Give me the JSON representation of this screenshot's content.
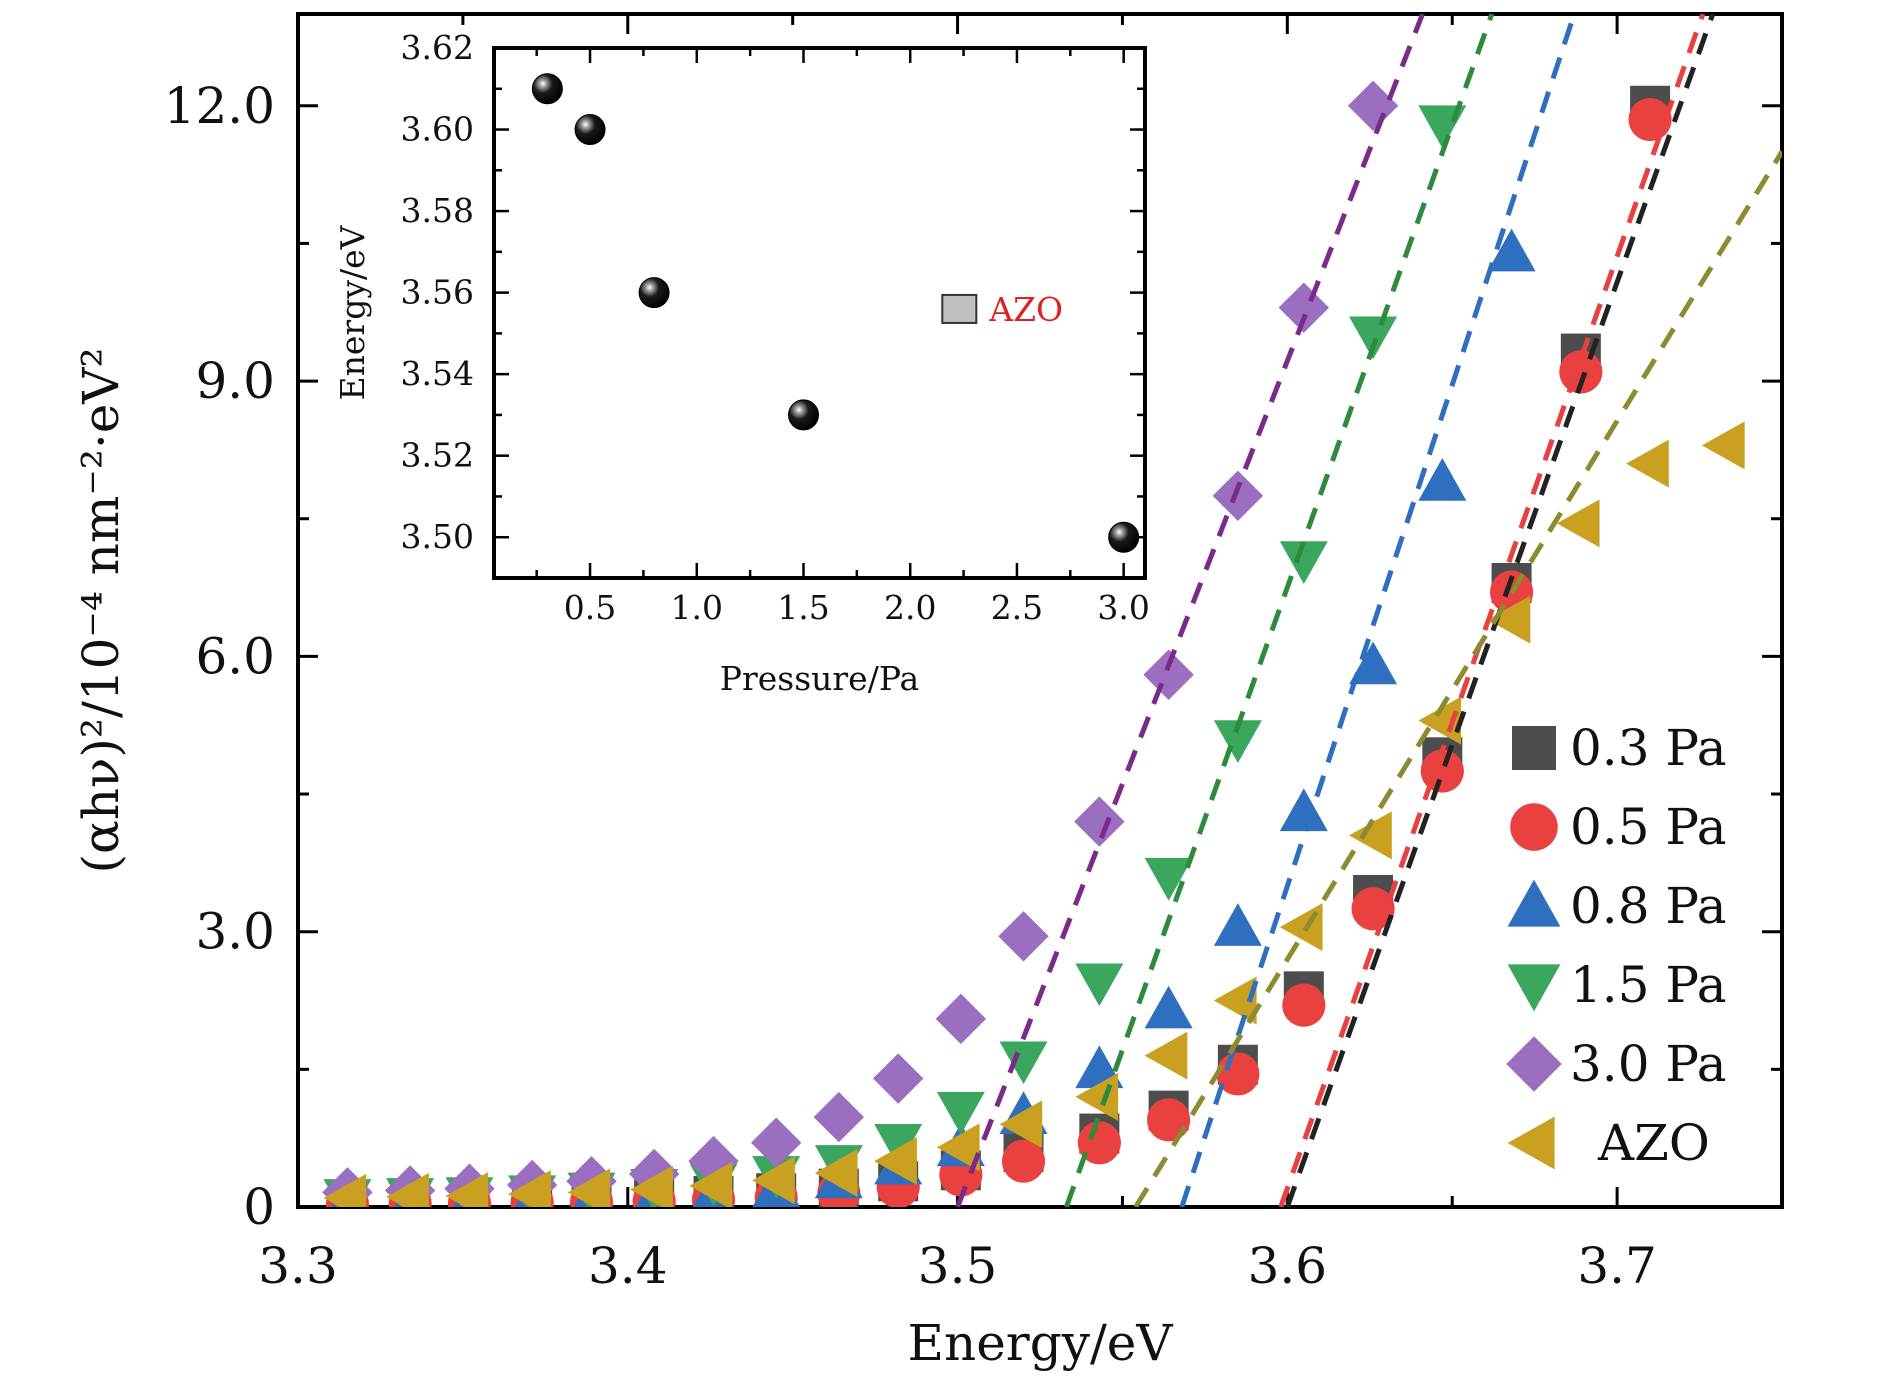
{
  "chart_data": [
    {
      "type": "scatter",
      "xlabel": "Energy/eV",
      "ylabel": "(αhν)²/10⁻⁴ nm⁻²·eV²",
      "xlim": [
        3.3,
        3.75
      ],
      "ylim": [
        0,
        13.0
      ],
      "x_ticks": [
        3.3,
        3.4,
        3.5,
        3.6,
        3.7
      ],
      "x_tick_labels": [
        "3.3",
        "3.4",
        "3.5",
        "3.6",
        "3.7"
      ],
      "y_ticks": [
        0,
        3.0,
        6.0,
        9.0,
        12.0
      ],
      "y_tick_labels": [
        "0",
        "3.0",
        "6.0",
        "9.0",
        "12.0"
      ],
      "legend_position": "bottom-right",
      "series": [
        {
          "name": "0.3 Pa",
          "marker": "square",
          "color": "#4d4d4d",
          "x": [
            3.315,
            3.334,
            3.352,
            3.371,
            3.389,
            3.408,
            3.426,
            3.445,
            3.464,
            3.482,
            3.501,
            3.52,
            3.543,
            3.564,
            3.585,
            3.605,
            3.626,
            3.647,
            3.668,
            3.689,
            3.71
          ],
          "y": [
            0.06,
            0.07,
            0.08,
            0.08,
            0.09,
            0.1,
            0.12,
            0.15,
            0.2,
            0.28,
            0.4,
            0.6,
            0.8,
            1.05,
            1.55,
            2.35,
            3.4,
            4.9,
            6.8,
            9.3,
            12.0
          ]
        },
        {
          "name": "0.5 Pa",
          "marker": "circle",
          "color": "#e8413f",
          "x": [
            3.315,
            3.334,
            3.352,
            3.371,
            3.389,
            3.408,
            3.426,
            3.445,
            3.464,
            3.482,
            3.501,
            3.52,
            3.543,
            3.564,
            3.585,
            3.605,
            3.626,
            3.647,
            3.668,
            3.689,
            3.71
          ],
          "y": [
            0.03,
            0.04,
            0.04,
            0.05,
            0.05,
            0.06,
            0.08,
            0.1,
            0.15,
            0.22,
            0.35,
            0.5,
            0.7,
            0.95,
            1.45,
            2.2,
            3.25,
            4.75,
            6.7,
            9.1,
            11.85
          ]
        },
        {
          "name": "0.8 Pa",
          "marker": "triangle-up",
          "color": "#2f6fbf",
          "x": [
            3.315,
            3.334,
            3.352,
            3.371,
            3.389,
            3.408,
            3.426,
            3.445,
            3.464,
            3.482,
            3.501,
            3.52,
            3.543,
            3.564,
            3.585,
            3.605,
            3.626,
            3.647,
            3.668
          ],
          "y": [
            0.05,
            0.05,
            0.06,
            0.07,
            0.08,
            0.1,
            0.14,
            0.2,
            0.3,
            0.45,
            0.65,
            1.0,
            1.5,
            2.15,
            3.05,
            4.3,
            5.9,
            7.9,
            10.4
          ]
        },
        {
          "name": "1.5 Pa",
          "marker": "triangle-down",
          "color": "#3aa65e",
          "x": [
            3.315,
            3.334,
            3.352,
            3.371,
            3.389,
            3.408,
            3.426,
            3.445,
            3.464,
            3.482,
            3.501,
            3.52,
            3.543,
            3.564,
            3.585,
            3.605,
            3.626,
            3.647
          ],
          "y": [
            0.1,
            0.11,
            0.12,
            0.14,
            0.17,
            0.21,
            0.27,
            0.35,
            0.47,
            0.7,
            1.05,
            1.6,
            2.45,
            3.6,
            5.1,
            7.05,
            9.5,
            11.8
          ]
        },
        {
          "name": "3.0 Pa",
          "marker": "diamond",
          "color": "#9b6fbf",
          "x": [
            3.315,
            3.334,
            3.352,
            3.371,
            3.389,
            3.408,
            3.426,
            3.445,
            3.464,
            3.482,
            3.501,
            3.52,
            3.543,
            3.564,
            3.585,
            3.605,
            3.626
          ],
          "y": [
            0.16,
            0.18,
            0.2,
            0.24,
            0.28,
            0.36,
            0.5,
            0.7,
            0.98,
            1.4,
            2.05,
            2.95,
            4.2,
            5.8,
            7.75,
            9.8,
            12.0
          ]
        },
        {
          "name": "AZO",
          "marker": "triangle-left",
          "color": "#c9a020",
          "x": [
            3.315,
            3.334,
            3.352,
            3.371,
            3.389,
            3.408,
            3.426,
            3.445,
            3.464,
            3.482,
            3.501,
            3.52,
            3.543,
            3.564,
            3.585,
            3.605,
            3.626,
            3.647,
            3.668,
            3.689,
            3.71,
            3.733
          ],
          "y": [
            0.1,
            0.11,
            0.12,
            0.14,
            0.16,
            0.19,
            0.23,
            0.29,
            0.37,
            0.5,
            0.65,
            0.9,
            1.2,
            1.65,
            2.25,
            3.05,
            4.05,
            5.3,
            6.4,
            7.45,
            8.1,
            8.3
          ]
        }
      ],
      "fit_lines": [
        {
          "color": "#222222",
          "x": [
            3.6,
            3.729
          ],
          "y": [
            0,
            13.0
          ]
        },
        {
          "color": "#e8413f",
          "x": [
            3.598,
            3.726
          ],
          "y": [
            0,
            13.0
          ]
        },
        {
          "color": "#2f6fbf",
          "x": [
            3.568,
            3.687
          ],
          "y": [
            0,
            13.0
          ]
        },
        {
          "color": "#2e8b3e",
          "x": [
            3.533,
            3.662
          ],
          "y": [
            0,
            13.0
          ]
        },
        {
          "color": "#7b2a8c",
          "x": [
            3.5,
            3.641
          ],
          "y": [
            0,
            13.0
          ]
        },
        {
          "color": "#8b8b30",
          "x": [
            3.554,
            3.75
          ],
          "y": [
            0,
            11.5
          ]
        }
      ]
    },
    {
      "type": "scatter",
      "xlabel": "Pressure/Pa",
      "ylabel": "Energy/eV",
      "xlim": [
        0.05,
        3.1
      ],
      "ylim": [
        3.49,
        3.62
      ],
      "x_ticks": [
        0.5,
        1.0,
        1.5,
        2.0,
        2.5,
        3.0
      ],
      "x_tick_labels": [
        "0.5",
        "1.0",
        "1.5",
        "2.0",
        "2.5",
        "3.0"
      ],
      "y_ticks": [
        3.5,
        3.52,
        3.54,
        3.56,
        3.58,
        3.6,
        3.62
      ],
      "y_tick_labels": [
        "3.50",
        "3.52",
        "3.54",
        "3.56",
        "3.58",
        "3.60",
        "3.62"
      ],
      "series": [
        {
          "marker": "sphere",
          "color": "#000000",
          "x": [
            0.3,
            0.5,
            0.8,
            1.5,
            3.0
          ],
          "y": [
            3.61,
            3.6,
            3.56,
            3.53,
            3.5
          ]
        }
      ],
      "annotation": {
        "label": "AZO",
        "color": "#e02020",
        "marker_color": "#c0c0c0",
        "x": 2.23,
        "y": 3.556
      }
    }
  ]
}
